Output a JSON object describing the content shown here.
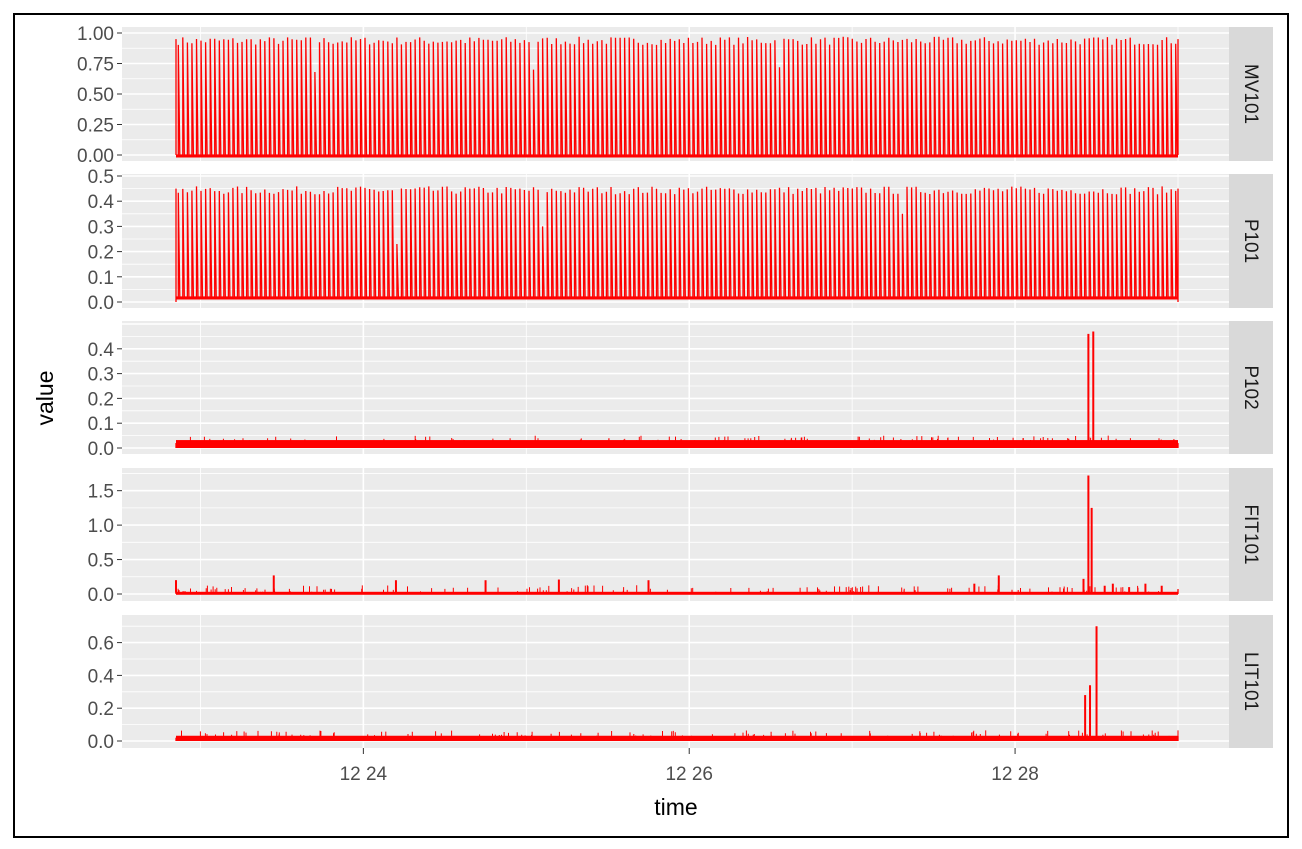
{
  "chart_data": {
    "type": "line",
    "facet_layout": "vertical strips on right",
    "xlabel": "time",
    "ylabel": "value",
    "x_ticks": [
      "12 24",
      "12 26",
      "12 28"
    ],
    "x_tick_minutes": [
      24,
      26,
      28
    ],
    "x_range_minutes": [
      22.85,
      29.0
    ],
    "line_color": "#ff0000",
    "panel_background": "#ebebeb",
    "strip_background": "#d9d9d9",
    "grid": true,
    "legend": "none",
    "panels": [
      {
        "name": "MV101",
        "ylim": [
          0,
          1.0
        ],
        "y_ticks": [
          "1.00",
          "0.75",
          "0.50",
          "0.25",
          "0.00"
        ],
        "y_tick_values": [
          1.0,
          0.75,
          0.5,
          0.25,
          0.0
        ],
        "baseline": 0.0,
        "pattern": "periodic spikes",
        "spike_count": 220,
        "spike_height": 0.95,
        "spikes": [
          {
            "minute": 23.7,
            "value": 0.68
          },
          {
            "minute": 25.05,
            "value": 0.7
          },
          {
            "minute": 26.55,
            "value": 0.72
          }
        ]
      },
      {
        "name": "P101",
        "ylim": [
          0,
          0.5
        ],
        "y_ticks": [
          "0.5",
          "0.4",
          "0.3",
          "0.2",
          "0.1",
          "0.0"
        ],
        "y_tick_values": [
          0.5,
          0.4,
          0.3,
          0.2,
          0.1,
          0.0
        ],
        "baseline": 0.02,
        "pattern": "periodic spikes",
        "spike_count": 220,
        "spike_height": 0.45,
        "spikes": [
          {
            "minute": 24.2,
            "value": 0.23
          },
          {
            "minute": 25.1,
            "value": 0.3
          },
          {
            "minute": 27.3,
            "value": 0.35
          }
        ]
      },
      {
        "name": "P102",
        "ylim": [
          0,
          0.5
        ],
        "y_ticks": [
          "0.4",
          "0.3",
          "0.2",
          "0.1",
          "0.0"
        ],
        "y_tick_values": [
          0.4,
          0.3,
          0.2,
          0.1,
          0.0
        ],
        "baseline": 0.02,
        "pattern": "flat with anomaly",
        "spikes": [
          {
            "minute": 28.45,
            "value": 0.46
          },
          {
            "minute": 28.48,
            "value": 0.47
          }
        ]
      },
      {
        "name": "FIT101",
        "ylim": [
          0,
          1.8
        ],
        "y_ticks": [
          "1.5",
          "1.0",
          "0.5",
          "0.0"
        ],
        "y_tick_values": [
          1.5,
          1.0,
          0.5,
          0.0
        ],
        "baseline": 0.02,
        "pattern": "flat with anomaly",
        "spikes": [
          {
            "minute": 22.85,
            "value": 0.2
          },
          {
            "minute": 23.45,
            "value": 0.27
          },
          {
            "minute": 24.2,
            "value": 0.2
          },
          {
            "minute": 24.75,
            "value": 0.2
          },
          {
            "minute": 25.2,
            "value": 0.21
          },
          {
            "minute": 25.75,
            "value": 0.2
          },
          {
            "minute": 27.75,
            "value": 0.15
          },
          {
            "minute": 27.9,
            "value": 0.27
          },
          {
            "minute": 28.42,
            "value": 0.22
          },
          {
            "minute": 28.45,
            "value": 1.72
          },
          {
            "minute": 28.47,
            "value": 1.25
          },
          {
            "minute": 28.55,
            "value": 0.12
          },
          {
            "minute": 28.6,
            "value": 0.15
          },
          {
            "minute": 28.7,
            "value": 0.1
          },
          {
            "minute": 28.8,
            "value": 0.15
          },
          {
            "minute": 28.9,
            "value": 0.12
          }
        ]
      },
      {
        "name": "LIT101",
        "ylim": [
          0,
          0.75
        ],
        "y_ticks": [
          "0.6",
          "0.4",
          "0.2",
          "0.0"
        ],
        "y_tick_values": [
          0.6,
          0.4,
          0.2,
          0.0
        ],
        "baseline": 0.02,
        "pattern": "flat with anomaly",
        "spikes": [
          {
            "minute": 28.43,
            "value": 0.28
          },
          {
            "minute": 28.46,
            "value": 0.34
          },
          {
            "minute": 28.5,
            "value": 0.7
          }
        ]
      }
    ]
  }
}
